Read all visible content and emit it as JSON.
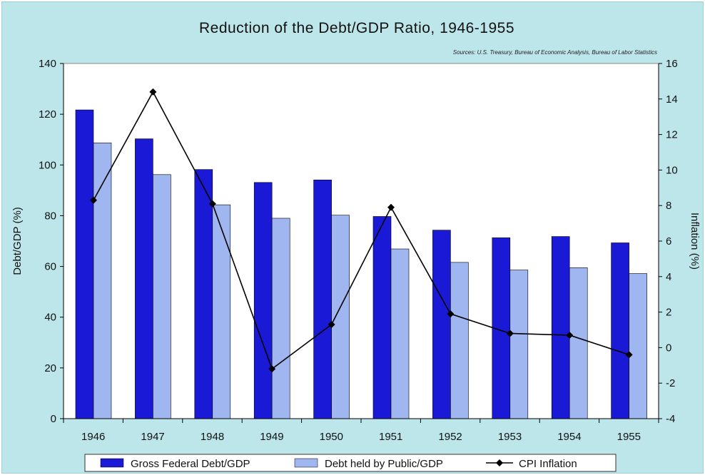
{
  "chart_data": {
    "type": "bar",
    "title": "Reduction of the Debt/GDP Ratio, 1946-1955",
    "source": "Sources: U.S. Treasury, Bureau of Economic Analysis, Bureau of Labor Statistics",
    "categories": [
      "1946",
      "1947",
      "1948",
      "1949",
      "1950",
      "1951",
      "1952",
      "1953",
      "1954",
      "1955"
    ],
    "series": [
      {
        "name": "Gross Federal Debt/GDP",
        "type": "bar",
        "axis": "left",
        "color": "#1a1ad6",
        "values": [
          121.7,
          110.3,
          98.2,
          93.1,
          94.1,
          79.7,
          74.3,
          71.3,
          71.8,
          69.3
        ]
      },
      {
        "name": "Debt held by Public/GDP",
        "type": "bar",
        "axis": "left",
        "color": "#9fb6f0",
        "values": [
          108.7,
          96.2,
          84.3,
          79.0,
          80.2,
          66.9,
          61.6,
          58.6,
          59.5,
          57.2
        ]
      },
      {
        "name": "CPI Inflation",
        "type": "line",
        "axis": "right",
        "color": "#000000",
        "values": [
          8.3,
          14.4,
          8.1,
          -1.2,
          1.3,
          7.9,
          1.9,
          0.8,
          0.7,
          -0.4
        ]
      }
    ],
    "ylabel": "Debt/GDP (%)",
    "ylim": [
      0,
      140
    ],
    "yticks": [
      "0",
      "20",
      "40",
      "60",
      "80",
      "100",
      "120",
      "140"
    ],
    "y2label": "Inflation (%)",
    "y2lim": [
      -4,
      16
    ],
    "y2ticks": [
      "-4",
      "-2",
      "0",
      "2",
      "4",
      "6",
      "8",
      "10",
      "12",
      "14",
      "16"
    ],
    "grid": false,
    "legend": "bottom"
  }
}
